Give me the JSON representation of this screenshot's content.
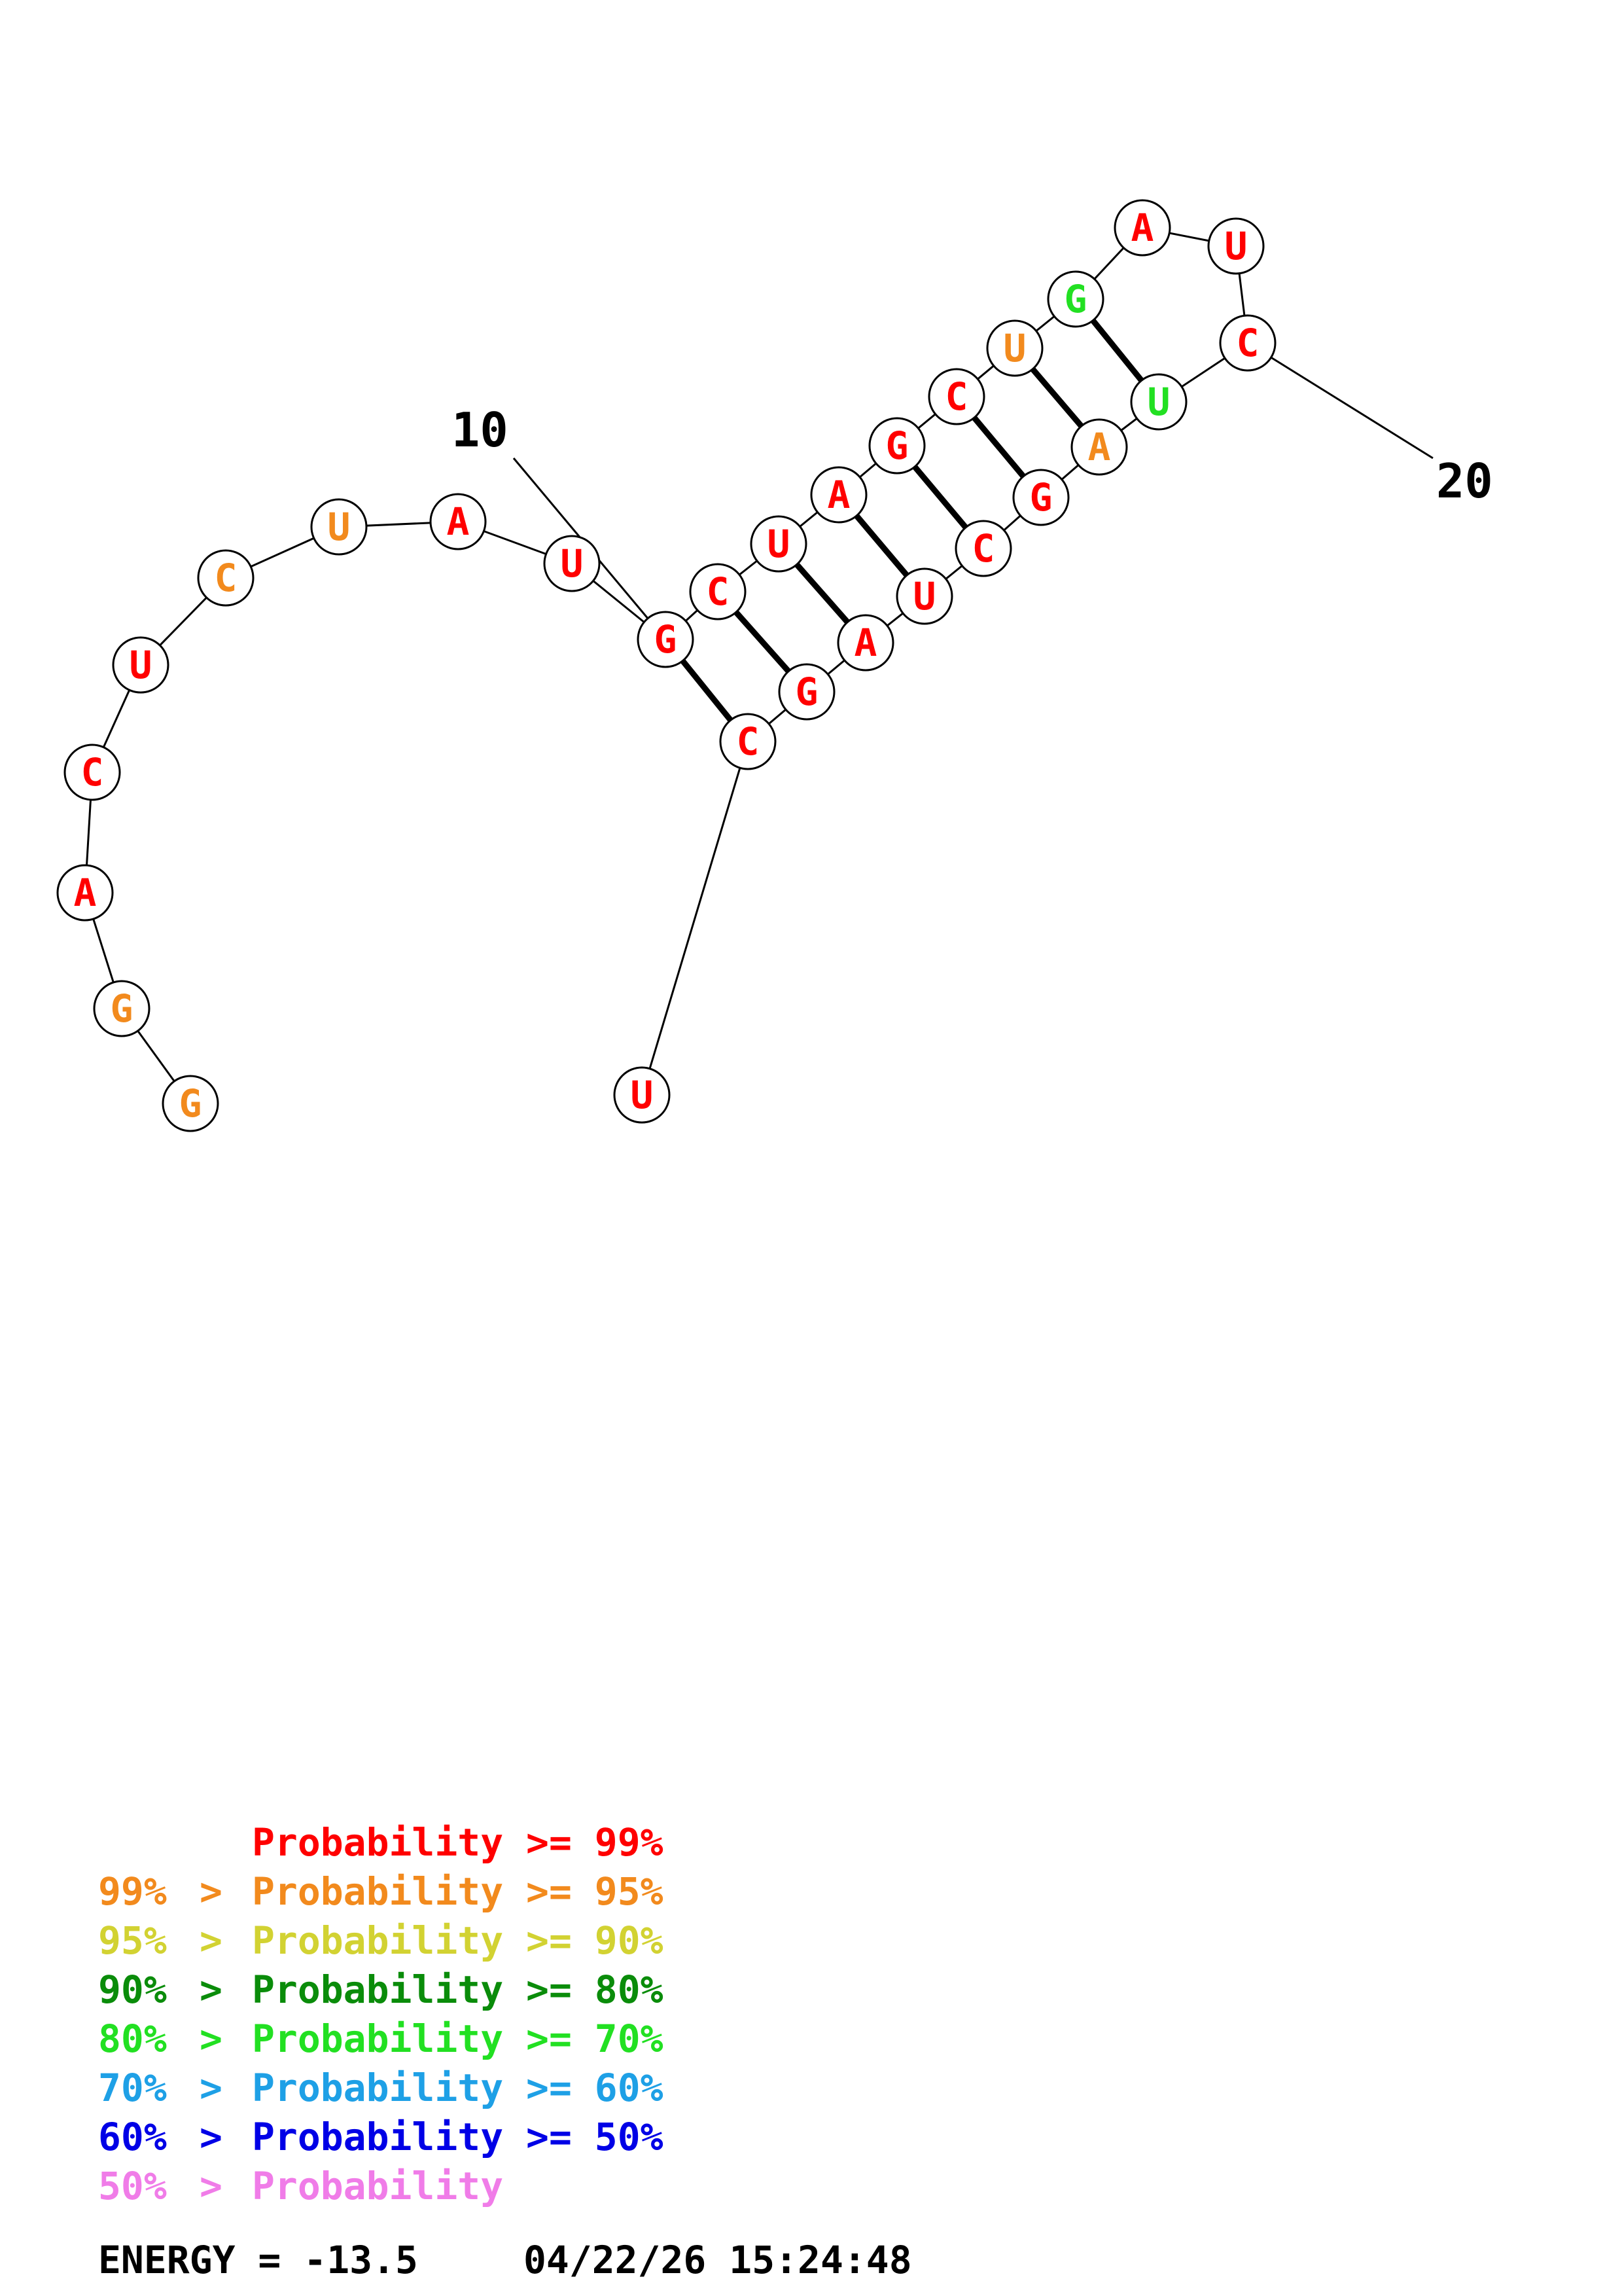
{
  "diagram": {
    "sequence": [
      "G",
      "G",
      "A",
      "C",
      "U",
      "C",
      "U",
      "A",
      "U",
      "G",
      "C",
      "U",
      "A",
      "G",
      "C",
      "U",
      "G",
      "A",
      "U",
      "C",
      "U",
      "G",
      "A",
      "C",
      "G",
      "A",
      "G",
      "C",
      "U"
    ],
    "bases": [
      {
        "n": 1,
        "base": "G",
        "color": "#f28a1d"
      },
      {
        "n": 2,
        "base": "G",
        "color": "#f28a1d"
      },
      {
        "n": 3,
        "base": "A",
        "color": "#ff0000"
      },
      {
        "n": 4,
        "base": "C",
        "color": "#ff0000"
      },
      {
        "n": 5,
        "base": "U",
        "color": "#ff0000"
      },
      {
        "n": 6,
        "base": "C",
        "color": "#f28a1d"
      },
      {
        "n": 7,
        "base": "U",
        "color": "#f28a1d"
      },
      {
        "n": 8,
        "base": "A",
        "color": "#ff0000"
      },
      {
        "n": 9,
        "base": "U",
        "color": "#ff0000"
      },
      {
        "n": 10,
        "base": "G",
        "color": "#ff0000"
      },
      {
        "n": 11,
        "base": "C",
        "color": "#ff0000"
      },
      {
        "n": 12,
        "base": "U",
        "color": "#ff0000"
      },
      {
        "n": 13,
        "base": "A",
        "color": "#ff0000"
      },
      {
        "n": 14,
        "base": "G",
        "color": "#ff0000"
      },
      {
        "n": 15,
        "base": "C",
        "color": "#ff0000"
      },
      {
        "n": 16,
        "base": "U",
        "color": "#f28a1d"
      },
      {
        "n": 17,
        "base": "G",
        "color": "#22e022"
      },
      {
        "n": 18,
        "base": "A",
        "color": "#ff0000"
      },
      {
        "n": 19,
        "base": "U",
        "color": "#ff0000"
      },
      {
        "n": 20,
        "base": "C",
        "color": "#ff0000"
      },
      {
        "n": 21,
        "base": "U",
        "color": "#22e022"
      },
      {
        "n": 22,
        "base": "A",
        "color": "#f28a1d"
      },
      {
        "n": 23,
        "base": "G",
        "color": "#ff0000"
      },
      {
        "n": 24,
        "base": "C",
        "color": "#ff0000"
      },
      {
        "n": 25,
        "base": "U",
        "color": "#ff0000"
      },
      {
        "n": 26,
        "base": "A",
        "color": "#ff0000"
      },
      {
        "n": 27,
        "base": "G",
        "color": "#ff0000"
      },
      {
        "n": 28,
        "base": "C",
        "color": "#ff0000"
      },
      {
        "n": 29,
        "base": "U",
        "color": "#ff0000"
      }
    ],
    "pairs": [
      [
        10,
        28
      ],
      [
        11,
        27
      ],
      [
        12,
        26
      ],
      [
        13,
        25
      ],
      [
        14,
        24
      ],
      [
        15,
        23
      ],
      [
        16,
        22
      ],
      [
        17,
        21
      ]
    ],
    "index_labels": [
      {
        "label": "10",
        "base": 10
      },
      {
        "label": "20",
        "base": 20
      }
    ]
  },
  "legend": {
    "rows": [
      {
        "upper": "",
        "text": "Probability >= 99%",
        "color": "#ff0000"
      },
      {
        "upper": "99%",
        "text": "Probability >= 95%",
        "color": "#f28a1d"
      },
      {
        "upper": "95%",
        "text": "Probability >= 90%",
        "color": "#d2d232"
      },
      {
        "upper": "90%",
        "text": "Probability >= 80%",
        "color": "#0a8c0a"
      },
      {
        "upper": "80%",
        "text": "Probability >= 70%",
        "color": "#22e022"
      },
      {
        "upper": "70%",
        "text": "Probability >= 60%",
        "color": "#1ea0e6"
      },
      {
        "upper": "60%",
        "text": "Probability >= 50%",
        "color": "#0000e6"
      },
      {
        "upper": "50%",
        "text": "Probability",
        "color": "#f07ce8"
      }
    ]
  },
  "footer": {
    "energy": "ENERGY = -13.5",
    "timestamp": "04/22/26 15:24:48"
  }
}
